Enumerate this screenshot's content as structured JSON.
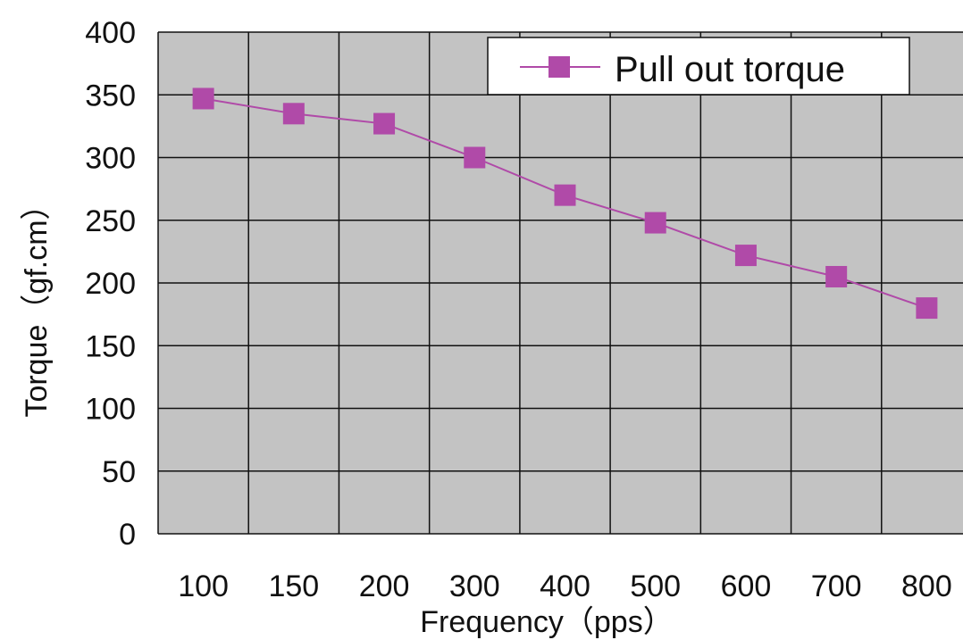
{
  "chart_data": {
    "type": "line",
    "title": "",
    "xlabel": "Frequency（pps）",
    "ylabel": "Torque（gf.cm）",
    "categories": [
      "100",
      "150",
      "200",
      "300",
      "400",
      "500",
      "600",
      "700",
      "800"
    ],
    "y_ticks": [
      "0",
      "50",
      "100",
      "150",
      "200",
      "250",
      "300",
      "350",
      "400"
    ],
    "ylim": [
      0,
      400
    ],
    "grid": true,
    "legend_position": "top-right",
    "series": [
      {
        "name": "Pull out torque",
        "values": [
          347,
          335,
          327,
          300,
          270,
          248,
          222,
          205,
          180
        ],
        "color": "#b04aa8",
        "marker": "square"
      }
    ],
    "colors": {
      "plot_background": "#c3c3c3",
      "gridline": "#111111"
    }
  }
}
